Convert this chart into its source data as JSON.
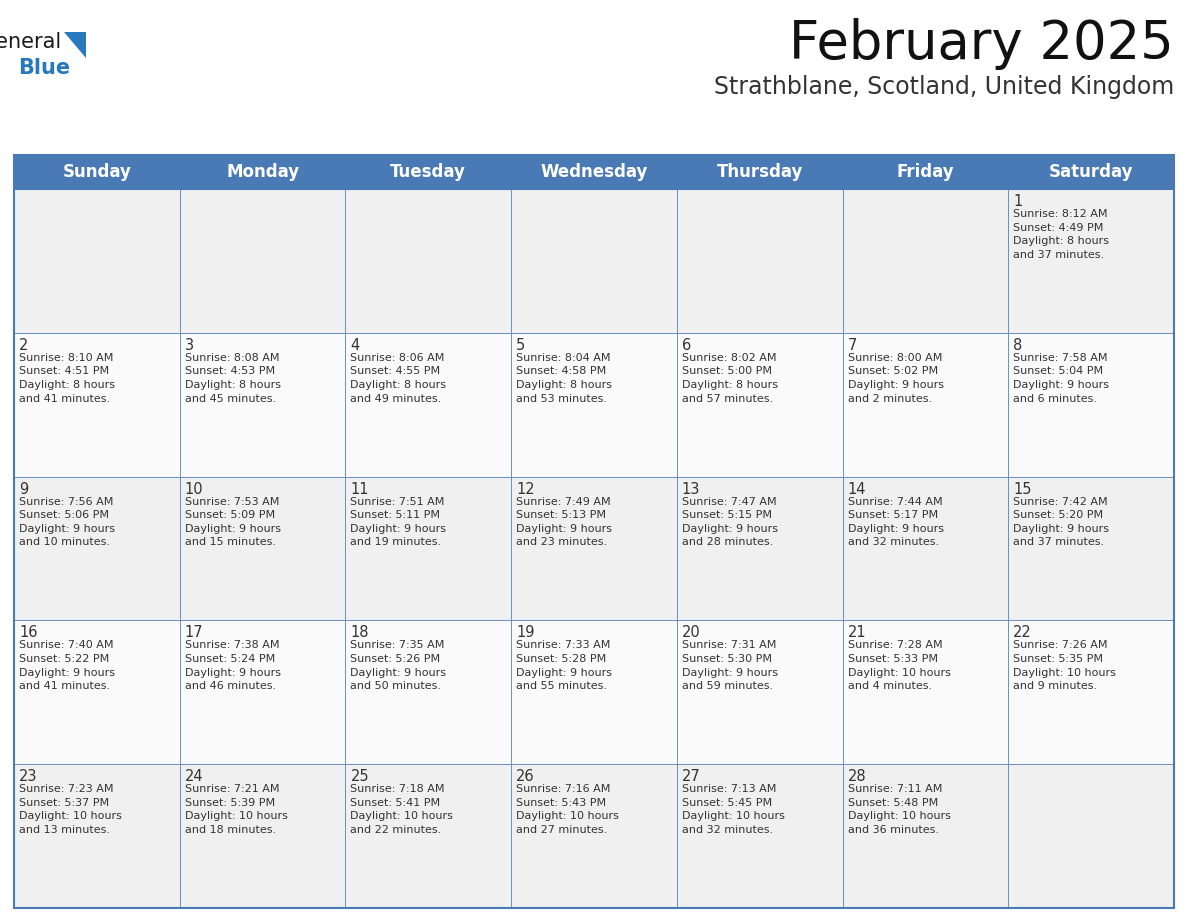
{
  "title": "February 2025",
  "subtitle": "Strathblane, Scotland, United Kingdom",
  "header_color": "#4a7ab5",
  "header_text_color": "#ffffff",
  "cell_bg_odd": "#f0f0f0",
  "cell_bg_even": "#fafafa",
  "border_color": "#4a7ab5",
  "text_color": "#333333",
  "day_names": [
    "Sunday",
    "Monday",
    "Tuesday",
    "Wednesday",
    "Thursday",
    "Friday",
    "Saturday"
  ],
  "title_fontsize": 38,
  "subtitle_fontsize": 17,
  "header_fontsize": 12,
  "day_num_fontsize": 10.5,
  "cell_text_fontsize": 8.0,
  "logo_color_general": "#1a1a1a",
  "logo_color_blue": "#2878be",
  "logo_triangle_color": "#2878be",
  "weeks": [
    [
      {
        "day": null,
        "info": null
      },
      {
        "day": null,
        "info": null
      },
      {
        "day": null,
        "info": null
      },
      {
        "day": null,
        "info": null
      },
      {
        "day": null,
        "info": null
      },
      {
        "day": null,
        "info": null
      },
      {
        "day": 1,
        "info": "Sunrise: 8:12 AM\nSunset: 4:49 PM\nDaylight: 8 hours\nand 37 minutes."
      }
    ],
    [
      {
        "day": 2,
        "info": "Sunrise: 8:10 AM\nSunset: 4:51 PM\nDaylight: 8 hours\nand 41 minutes."
      },
      {
        "day": 3,
        "info": "Sunrise: 8:08 AM\nSunset: 4:53 PM\nDaylight: 8 hours\nand 45 minutes."
      },
      {
        "day": 4,
        "info": "Sunrise: 8:06 AM\nSunset: 4:55 PM\nDaylight: 8 hours\nand 49 minutes."
      },
      {
        "day": 5,
        "info": "Sunrise: 8:04 AM\nSunset: 4:58 PM\nDaylight: 8 hours\nand 53 minutes."
      },
      {
        "day": 6,
        "info": "Sunrise: 8:02 AM\nSunset: 5:00 PM\nDaylight: 8 hours\nand 57 minutes."
      },
      {
        "day": 7,
        "info": "Sunrise: 8:00 AM\nSunset: 5:02 PM\nDaylight: 9 hours\nand 2 minutes."
      },
      {
        "day": 8,
        "info": "Sunrise: 7:58 AM\nSunset: 5:04 PM\nDaylight: 9 hours\nand 6 minutes."
      }
    ],
    [
      {
        "day": 9,
        "info": "Sunrise: 7:56 AM\nSunset: 5:06 PM\nDaylight: 9 hours\nand 10 minutes."
      },
      {
        "day": 10,
        "info": "Sunrise: 7:53 AM\nSunset: 5:09 PM\nDaylight: 9 hours\nand 15 minutes."
      },
      {
        "day": 11,
        "info": "Sunrise: 7:51 AM\nSunset: 5:11 PM\nDaylight: 9 hours\nand 19 minutes."
      },
      {
        "day": 12,
        "info": "Sunrise: 7:49 AM\nSunset: 5:13 PM\nDaylight: 9 hours\nand 23 minutes."
      },
      {
        "day": 13,
        "info": "Sunrise: 7:47 AM\nSunset: 5:15 PM\nDaylight: 9 hours\nand 28 minutes."
      },
      {
        "day": 14,
        "info": "Sunrise: 7:44 AM\nSunset: 5:17 PM\nDaylight: 9 hours\nand 32 minutes."
      },
      {
        "day": 15,
        "info": "Sunrise: 7:42 AM\nSunset: 5:20 PM\nDaylight: 9 hours\nand 37 minutes."
      }
    ],
    [
      {
        "day": 16,
        "info": "Sunrise: 7:40 AM\nSunset: 5:22 PM\nDaylight: 9 hours\nand 41 minutes."
      },
      {
        "day": 17,
        "info": "Sunrise: 7:38 AM\nSunset: 5:24 PM\nDaylight: 9 hours\nand 46 minutes."
      },
      {
        "day": 18,
        "info": "Sunrise: 7:35 AM\nSunset: 5:26 PM\nDaylight: 9 hours\nand 50 minutes."
      },
      {
        "day": 19,
        "info": "Sunrise: 7:33 AM\nSunset: 5:28 PM\nDaylight: 9 hours\nand 55 minutes."
      },
      {
        "day": 20,
        "info": "Sunrise: 7:31 AM\nSunset: 5:30 PM\nDaylight: 9 hours\nand 59 minutes."
      },
      {
        "day": 21,
        "info": "Sunrise: 7:28 AM\nSunset: 5:33 PM\nDaylight: 10 hours\nand 4 minutes."
      },
      {
        "day": 22,
        "info": "Sunrise: 7:26 AM\nSunset: 5:35 PM\nDaylight: 10 hours\nand 9 minutes."
      }
    ],
    [
      {
        "day": 23,
        "info": "Sunrise: 7:23 AM\nSunset: 5:37 PM\nDaylight: 10 hours\nand 13 minutes."
      },
      {
        "day": 24,
        "info": "Sunrise: 7:21 AM\nSunset: 5:39 PM\nDaylight: 10 hours\nand 18 minutes."
      },
      {
        "day": 25,
        "info": "Sunrise: 7:18 AM\nSunset: 5:41 PM\nDaylight: 10 hours\nand 22 minutes."
      },
      {
        "day": 26,
        "info": "Sunrise: 7:16 AM\nSunset: 5:43 PM\nDaylight: 10 hours\nand 27 minutes."
      },
      {
        "day": 27,
        "info": "Sunrise: 7:13 AM\nSunset: 5:45 PM\nDaylight: 10 hours\nand 32 minutes."
      },
      {
        "day": 28,
        "info": "Sunrise: 7:11 AM\nSunset: 5:48 PM\nDaylight: 10 hours\nand 36 minutes."
      },
      {
        "day": null,
        "info": null
      }
    ]
  ]
}
